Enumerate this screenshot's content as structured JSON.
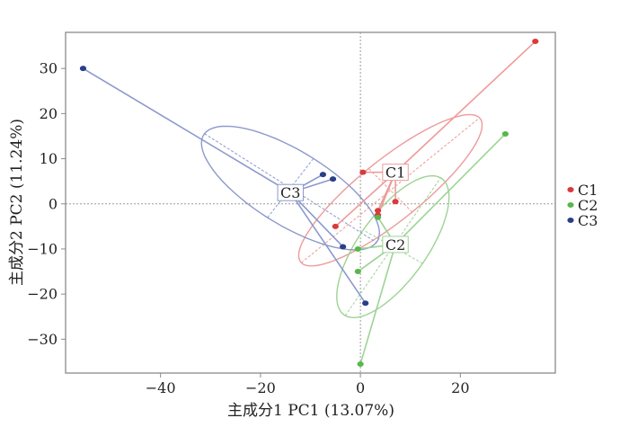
{
  "chart_data": {
    "type": "scatter",
    "xlabel": "主成分1 PC1 (13.07%)",
    "ylabel": "主成分2 PC2 (11.24%)",
    "xlim": [
      -59,
      39
    ],
    "ylim": [
      -37.5,
      38
    ],
    "x_ticks": [
      -40,
      -20,
      0,
      20
    ],
    "y_ticks": [
      30,
      20,
      10,
      0,
      -10,
      -20,
      -30
    ],
    "legend_position": "right",
    "zero_lines": true,
    "grid": false,
    "series": [
      {
        "name": "C1",
        "color": "#d93a3a",
        "line_color": "#ee9a9a",
        "centroid": [
          7,
          7
        ],
        "centroid_label": "C1",
        "points": [
          [
            35,
            36
          ],
          [
            0.5,
            7
          ],
          [
            -5,
            -5
          ],
          [
            7,
            0.5
          ],
          [
            3.5,
            -2.5
          ],
          [
            3.5,
            -1.5
          ]
        ],
        "ellipse": {
          "cx": 6,
          "cy": 3,
          "rx": 24,
          "ry": 6.5,
          "angle": 42
        }
      },
      {
        "name": "C2",
        "color": "#56b84a",
        "line_color": "#9cd493",
        "centroid": [
          7,
          -9
        ],
        "centroid_label": "C2",
        "points": [
          [
            29,
            15.5
          ],
          [
            -0.5,
            -10
          ],
          [
            -0.5,
            -15
          ],
          [
            0,
            -35.5
          ],
          [
            3.5,
            -3
          ]
        ],
        "ellipse": {
          "cx": 6.5,
          "cy": -9.5,
          "rx": 18,
          "ry": 7,
          "angle": 58
        }
      },
      {
        "name": "C3",
        "color": "#2b3e88",
        "line_color": "#8c99cc",
        "centroid": [
          -14,
          2.5
        ],
        "centroid_label": "C3",
        "points": [
          [
            -55.5,
            30
          ],
          [
            -7.5,
            6.5
          ],
          [
            -5.5,
            5.5
          ],
          [
            -3.5,
            -9.5
          ],
          [
            1,
            -22
          ]
        ],
        "ellipse": {
          "cx": -14,
          "cy": 3.5,
          "rx": 21,
          "ry": 8,
          "angle": -35
        }
      }
    ]
  }
}
